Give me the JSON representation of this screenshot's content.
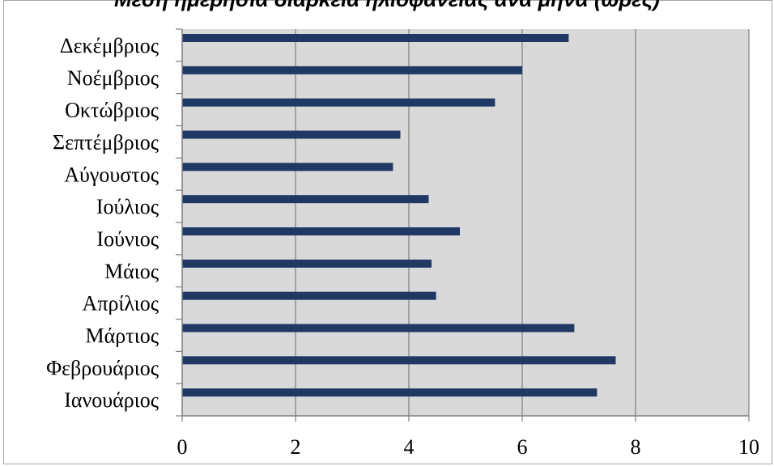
{
  "chart_data": {
    "type": "bar",
    "orientation": "horizontal",
    "title": "Μέση ημερήσια διάρκεια ηλιοφάνειας ανά μήνα (ώρες)",
    "categories": [
      "Ιανουάριος",
      "Φεβρουάριος",
      "Μάρτιος",
      "Απρίλιος",
      "Μάιος",
      "Ιούνιος",
      "Ιούλιος",
      "Αύγουστος",
      "Σεπτέμβριος",
      "Οκτώβριος",
      "Νοέμβριος",
      "Δεκέμβριος"
    ],
    "values": [
      7.32,
      7.65,
      6.92,
      4.48,
      4.4,
      4.9,
      4.35,
      3.72,
      3.85,
      5.52,
      6.0,
      6.82
    ],
    "xlim": [
      0,
      10
    ],
    "xticks": [
      "0",
      "2",
      "4",
      "6",
      "8",
      "10"
    ],
    "grid": true,
    "colors": {
      "bar": "#1f3864",
      "plot_background": "#d9d9d9",
      "gridline": "#808080"
    }
  }
}
